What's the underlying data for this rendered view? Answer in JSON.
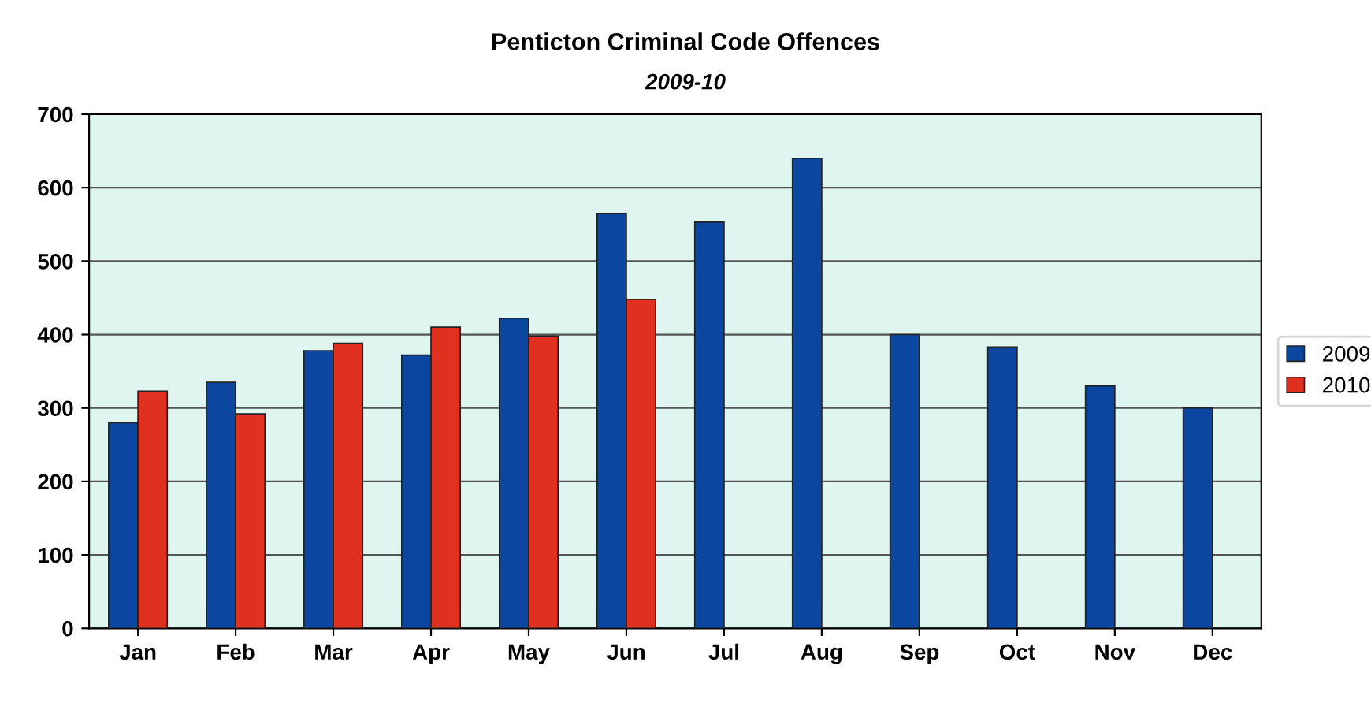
{
  "chart_data": {
    "type": "bar",
    "title": "Penticton Criminal Code Offences",
    "subtitle": "2009-10",
    "categories": [
      "Jan",
      "Feb",
      "Mar",
      "Apr",
      "May",
      "Jun",
      "Jul",
      "Aug",
      "Sep",
      "Oct",
      "Nov",
      "Dec"
    ],
    "series": [
      {
        "name": "2009",
        "color": "#0b46a0",
        "values": [
          280,
          335,
          378,
          372,
          422,
          565,
          553,
          640,
          400,
          383,
          330,
          300
        ]
      },
      {
        "name": "2010",
        "color": "#e03020",
        "values": [
          323,
          292,
          388,
          410,
          398,
          448,
          null,
          null,
          null,
          null,
          null,
          null
        ]
      }
    ],
    "ylim": [
      0,
      700
    ],
    "yticks": [
      0,
      100,
      200,
      300,
      400,
      500,
      600,
      700
    ],
    "grid": "y",
    "legend": "right"
  }
}
